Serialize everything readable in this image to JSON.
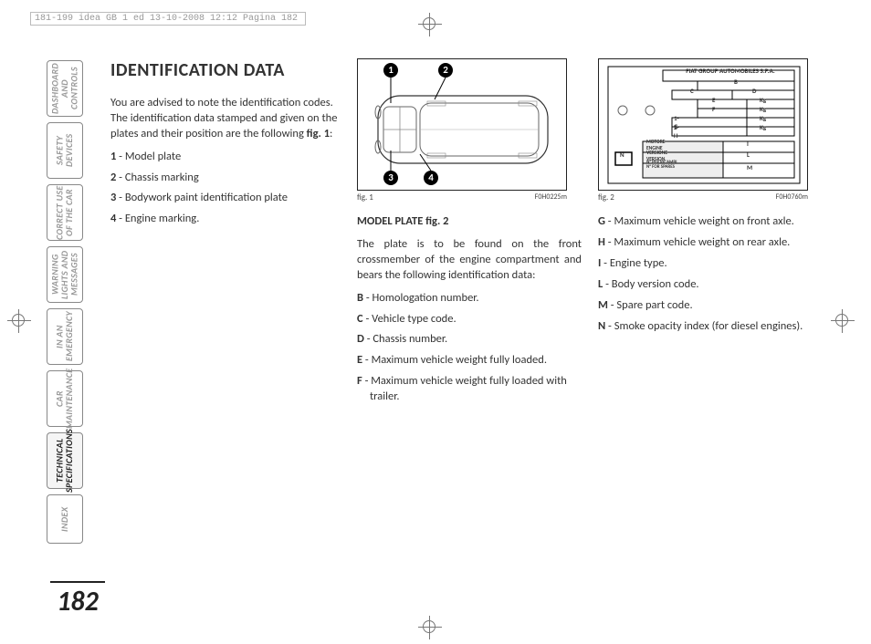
{
  "printHeader": "181-199 idea GB 1 ed  13-10-2008  12:12  Pagina 182",
  "pageNumber": "182",
  "tabs": [
    {
      "label": "DASHBOARD AND CONTROLS",
      "active": false
    },
    {
      "label": "SAFETY DEVICES",
      "active": false
    },
    {
      "label": "CORRECT USE OF THE CAR",
      "active": false
    },
    {
      "label": "WARNING LIGHTS AND MESSAGES",
      "active": false
    },
    {
      "label": "IN AN EMERGENCY",
      "active": false
    },
    {
      "label": "CAR MAINTENANCE",
      "active": false
    },
    {
      "label": "TECHNICAL SPECIFICATIONS",
      "active": true
    },
    {
      "label": "INDEX",
      "active": false,
      "cls": "index"
    }
  ],
  "heading": "IDENTIFICATION DATA",
  "intro": "You are advised to note the identification codes. The identification data stamped and given on the plates and their position are the following ",
  "introBoldRef": "fig. 1",
  "introTail": ":",
  "list1": [
    {
      "n": "1",
      "t": " - Model plate"
    },
    {
      "n": "2",
      "t": " - Chassis marking"
    },
    {
      "n": "3",
      "t": " - Bodywork paint identification plate"
    },
    {
      "n": "4",
      "t": " - Engine marking."
    }
  ],
  "fig1": {
    "label": "fig. 1",
    "code": "F0H0225m",
    "callouts": [
      "1",
      "2",
      "3",
      "4"
    ]
  },
  "section2Title": "MODEL PLATE fig. 2",
  "section2Intro": "The plate is to be found on the front crossmember of the engine compartment and bears the following identification data:",
  "list2a": [
    {
      "n": "B",
      "t": " - Homologation number."
    },
    {
      "n": "C",
      "t": " - Vehicle type code."
    },
    {
      "n": "D",
      "t": " - Chassis number."
    },
    {
      "n": "E",
      "t": " - Maximum vehicle weight fully loaded."
    },
    {
      "n": "F",
      "t": " - Maximum vehicle weight fully loaded with trailer."
    }
  ],
  "fig2": {
    "label": "fig. 2",
    "code": "F0H0760m",
    "brand": "FIAT GROUP AUTOMOBILES S.P.A.",
    "rows": [
      {
        "l": "",
        "c": "B"
      },
      {
        "l": "C",
        "c": "D"
      },
      {
        "l": "E",
        "c": "Kg"
      },
      {
        "l": "F",
        "c": "Kg"
      },
      {
        "l": "1-   G",
        "c": "Kg"
      },
      {
        "l": "2-   H",
        "c": "Kg"
      }
    ],
    "bottomRows": [
      {
        "k": "MOTORE-ENGINE",
        "v": "I"
      },
      {
        "k": "VERSIONE-VERSION",
        "v": "L"
      },
      {
        "k": "N° PER RICAMBI\nN° FOR SPARES",
        "v": "M"
      }
    ],
    "nBox": "N"
  },
  "list2b": [
    {
      "n": "G",
      "t": " - Maximum vehicle weight on front axle."
    },
    {
      "n": "H",
      "t": " - Maximum vehicle weight on rear axle."
    },
    {
      "n": "I",
      "t": " - Engine type."
    },
    {
      "n": "L",
      "t": " - Body version code."
    },
    {
      "n": "M",
      "t": " - Spare part code."
    },
    {
      "n": "N",
      "t": " - Smoke opacity index (for diesel engines)."
    }
  ]
}
